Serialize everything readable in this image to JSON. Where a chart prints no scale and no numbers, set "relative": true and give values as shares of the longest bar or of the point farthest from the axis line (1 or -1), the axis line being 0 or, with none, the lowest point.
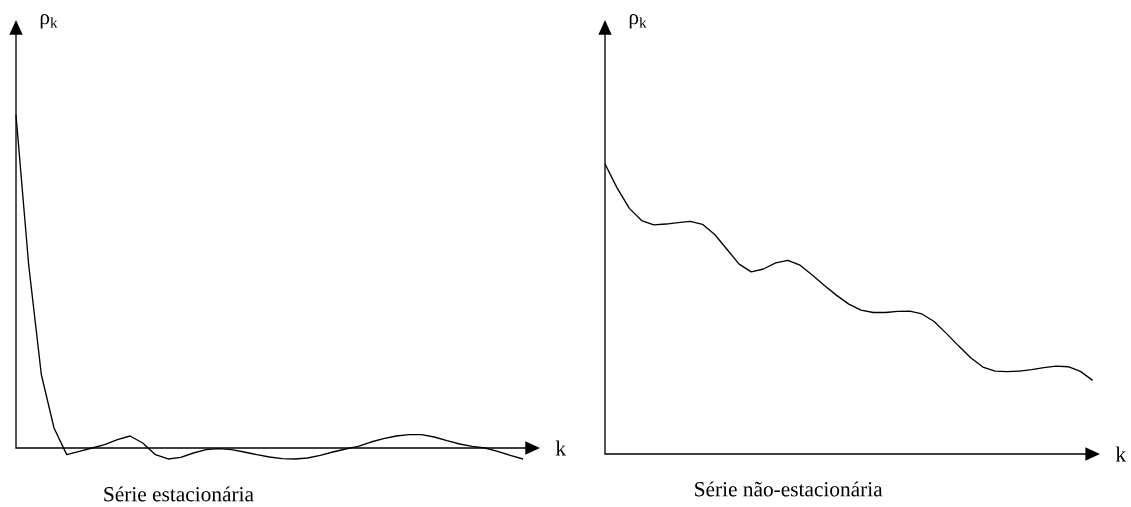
{
  "chart_data": [
    {
      "type": "line",
      "title": "Série estacionária",
      "xlabel": "k",
      "ylabel": "ρ$_{k}$",
      "relative": true,
      "color": "#000000",
      "categories": [
        null,
        null,
        null,
        null,
        null,
        null,
        null,
        null,
        null,
        null,
        null,
        null,
        null,
        null,
        null,
        null,
        null,
        null,
        null,
        null,
        null,
        null,
        null,
        null,
        null,
        null,
        null,
        null,
        null,
        null,
        null,
        null,
        null,
        null,
        null,
        null,
        null,
        null,
        null,
        null,
        null
      ],
      "values": [
        1.0,
        0.55,
        0.22,
        0.06,
        -0.02,
        -0.01,
        0.0,
        0.01,
        0.025,
        0.036,
        0.015,
        -0.02,
        -0.033,
        -0.028,
        -0.015,
        -0.005,
        -0.002,
        -0.005,
        -0.012,
        -0.02,
        -0.027,
        -0.032,
        -0.033,
        -0.03,
        -0.022,
        -0.012,
        -0.003,
        0.005,
        0.018,
        0.028,
        0.036,
        0.04,
        0.04,
        0.033,
        0.022,
        0.012,
        0.005,
        0.0,
        -0.01,
        -0.022,
        -0.033
      ]
    },
    {
      "type": "line",
      "title": "Série não-estacionária",
      "xlabel": "k",
      "ylabel": "ρ$_{k}$",
      "relative": true,
      "color": "#000000",
      "categories": [
        null,
        null,
        null,
        null,
        null,
        null,
        null,
        null,
        null,
        null,
        null,
        null,
        null,
        null,
        null,
        null,
        null,
        null,
        null,
        null,
        null,
        null,
        null,
        null,
        null,
        null,
        null,
        null,
        null,
        null,
        null,
        null,
        null,
        null,
        null,
        null,
        null,
        null,
        null,
        null,
        null
      ],
      "values": [
        1.0,
        0.917,
        0.847,
        0.805,
        0.79,
        0.793,
        0.798,
        0.802,
        0.792,
        0.757,
        0.706,
        0.655,
        0.628,
        0.638,
        0.659,
        0.668,
        0.651,
        0.617,
        0.581,
        0.547,
        0.517,
        0.496,
        0.488,
        0.488,
        0.492,
        0.493,
        0.483,
        0.457,
        0.416,
        0.373,
        0.332,
        0.3,
        0.286,
        0.284,
        0.286,
        0.291,
        0.298,
        0.303,
        0.301,
        0.285,
        0.254
      ]
    }
  ]
}
